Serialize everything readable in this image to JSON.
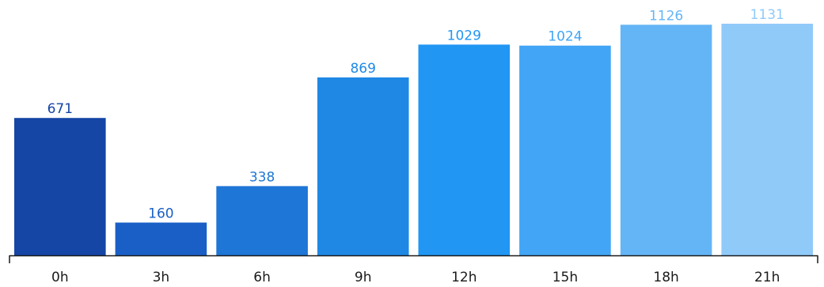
{
  "chart_data": {
    "type": "bar",
    "categories": [
      "0h",
      "3h",
      "6h",
      "9h",
      "12h",
      "15h",
      "18h",
      "21h"
    ],
    "values": [
      671,
      160,
      338,
      869,
      1029,
      1024,
      1126,
      1131
    ],
    "title": "",
    "xlabel": "",
    "ylabel": "",
    "ylim": [
      0,
      1131
    ],
    "grid": false,
    "legend": "none",
    "colors": [
      "#1545a5",
      "#1a5fc6",
      "#1e76d6",
      "#1f88e5",
      "#2196f3",
      "#42a5f5",
      "#64b5f6",
      "#90caf9"
    ],
    "label_colors": [
      "#1545a5",
      "#1a5fc6",
      "#1e76d6",
      "#1f88e5",
      "#2196f3",
      "#42a5f5",
      "#64b5f6",
      "#90caf9"
    ],
    "axis_color": "#1a1a1a",
    "tick_label_color": "#1a1a1a"
  }
}
